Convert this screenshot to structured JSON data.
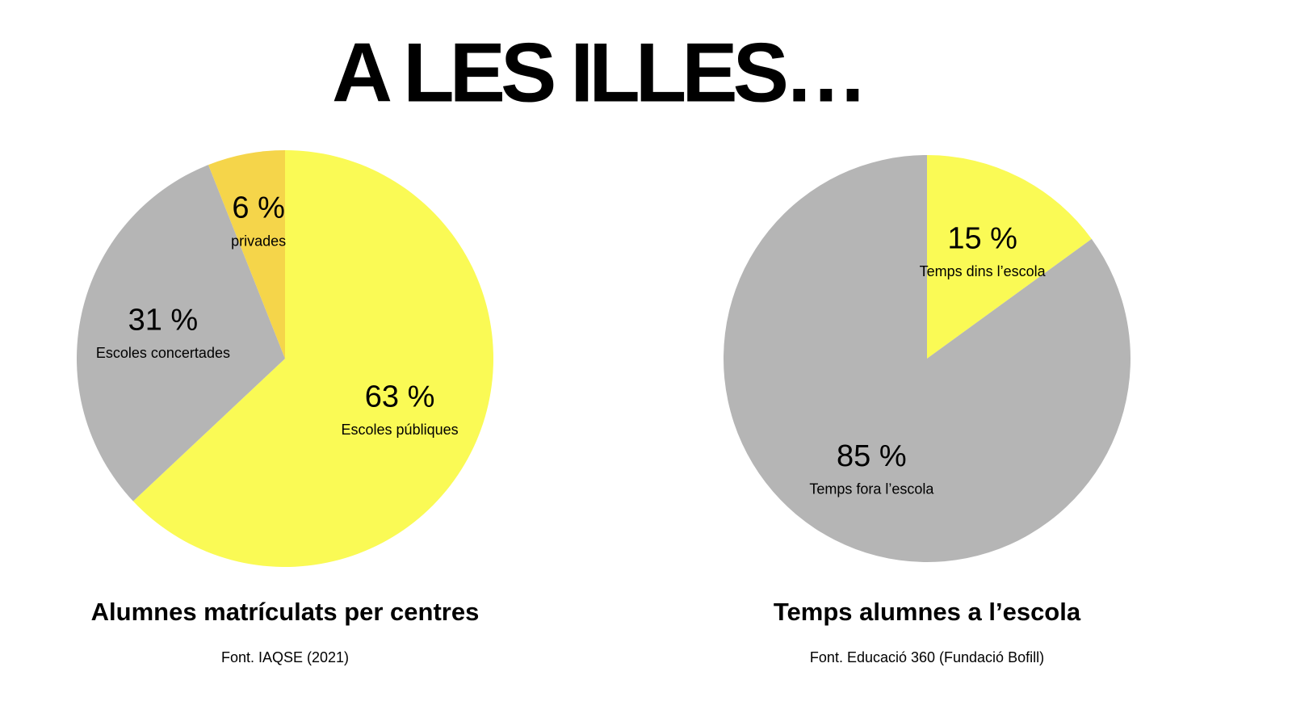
{
  "title": "A LES ILLES…",
  "chart_data": [
    {
      "type": "pie",
      "title": "Alumnes matrículats per centres",
      "source": "Font. IAQSE (2021)",
      "categories": [
        "Escoles públiques",
        "Escoles concertades",
        "privades"
      ],
      "values": [
        63,
        31,
        6
      ],
      "value_labels": [
        "63 %",
        "31 %",
        "6 %"
      ],
      "colors": [
        "#fafa55",
        "#b5b5b5",
        "#f5d54a"
      ]
    },
    {
      "type": "pie",
      "title": "Temps alumnes a l’escola",
      "source": "Font. Educació 360  (Fundació Bofill)",
      "categories": [
        "Temps dins l’escola",
        "Temps fora l’escola"
      ],
      "values": [
        15,
        85
      ],
      "value_labels": [
        "15 %",
        "85 %"
      ],
      "colors": [
        "#fafa55",
        "#b5b5b5"
      ]
    }
  ]
}
